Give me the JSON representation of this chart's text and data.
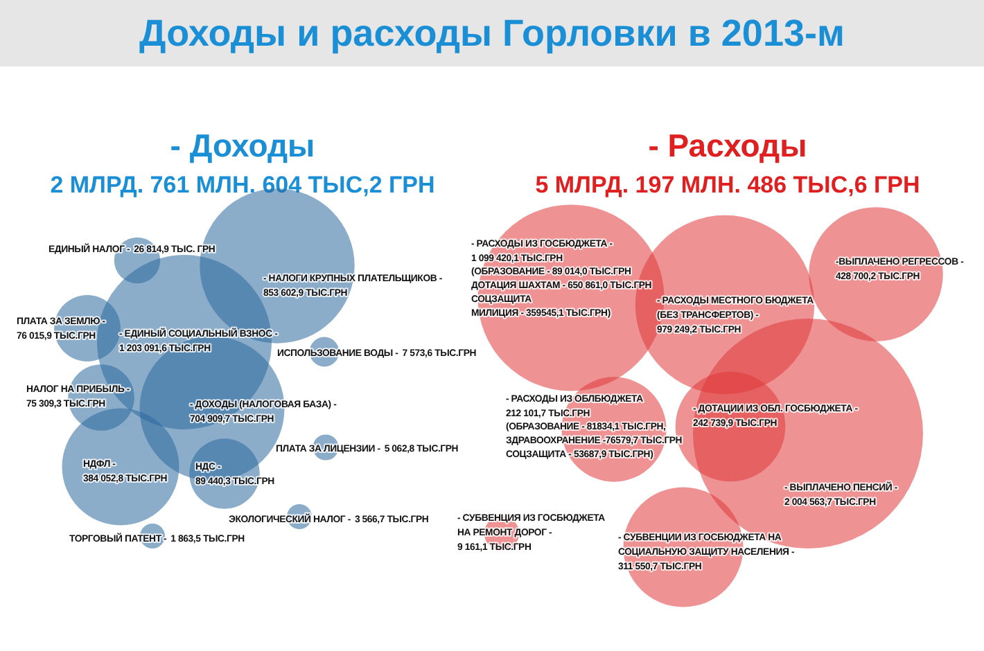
{
  "chart_data": [
    {
      "type": "other",
      "title": "Доходы и расходы Горловки в 2013-м"
    },
    {
      "type": "other",
      "title": "- Доходы",
      "subtitle": "2 МЛРД. 761 МЛН. 604 ТЫС,2 ГРН",
      "color": "#2c6a9e",
      "categories": [
        "ЕДИНЫЙ НАЛОГ -",
        "- НАЛОГИ КРУПНЫХ ПЛАТЕЛЬЩИКОВ -",
        "- ЕДИНЫЙ СОЦИАЛЬНЫЙ ВЗНОС -",
        "ПЛАТА ЗА ЗЕМЛЮ -",
        "НАЛОГ НА ПРИБЫЛЬ -",
        "- ДОХОДЫ (НАЛОГОВАЯ БАЗА) -",
        "НДФЛ -",
        "НДС -",
        "ИСПОЛЬЗОВАНИЕ ВОДЫ -",
        "ПЛАТА ЗА ЛИЦЕНЗИИ -",
        "ЭКОЛОГИЧЕСКИЙ НАЛОГ -",
        "ТОРГОВЫЙ ПАТЕНТ -"
      ],
      "values": [
        26814.9,
        853602.9,
        1203091.6,
        76015.9,
        75309.3,
        704909.7,
        384052.8,
        89440.3,
        7573.6,
        5062.8,
        3566.7,
        1863.5
      ],
      "value_labels": [
        "26 814,9 ТЫС. ГРН",
        "853 602,9 ТЫС.ГРН",
        "1 203 091,6 ТЫС.ГРН",
        "76 015,9  ТЫС.ГРН",
        "75 309,3 ТЫС.ГРН",
        "704 909,7 ТЫС.ГРН",
        "384 052,8 ТЫС.ГРН",
        "89 440,3 ТЫС.ГРН",
        "7 573,6 ТЫС.ГРН",
        "5 062,8 ТЫС.ГРН",
        "3 566,7 ТЫС.ГРН",
        "1 863,5 ТЫС.ГРН"
      ]
    },
    {
      "type": "other",
      "title": "- Расходы",
      "subtitle": "5 МЛРД. 197 МЛН. 486 ТЫС,6 ГРН",
      "color": "#e0383b",
      "categories": [
        "- РАСХОДЫ ИЗ ГОСБЮДЖЕТА -",
        "- РАСХОДЫ МЕСТНОГО БЮДЖЕТА (БЕЗ ТРАНСФЕРТОВ) -",
        "-ВЫПЛАЧЕНО РЕГРЕССОВ -",
        "- РАСХОДЫ ИЗ ОБЛБЮДЖЕТА",
        "- ДОТАЦИИ ИЗ ОБЛ. ГОСБЮДЖЕТА -",
        "- ВЫПЛАЧЕНО ПЕНСИЙ -",
        "- СУБВЕНЦИИ ИЗ ГОСБЮДЖЕТА НА СОЦИАЛЬНУЮ ЗАЩИТУ НАСЕЛЕНИЯ -",
        "- СУБВЕНЦИЯ ИЗ ГОСБЮДЖЕТА НА РЕМОНТ ДОРОГ -"
      ],
      "values": [
        1099420.1,
        979249.2,
        428700.2,
        212101.7,
        242739.9,
        2004563.7,
        311550.7,
        9161.1
      ],
      "value_labels": [
        "1 099 420,1 ТЫС.ГРН",
        "979 249,2 ТЫС.ГРН",
        "428 700,2 ТЫС.ГРН",
        "212 101,7 ТЫС.ГРН",
        "242 739,9 ТЫС.ГРН",
        "2 004 563,7 ТЫС.ГРН",
        "311 550,7 ТЫС.ГРН",
        "9 161,1 ТЫС.ГРН"
      ],
      "annotations": [
        "(ОБРАЗОВАНИЕ - 89 014,0 ТЫС.ГРН",
        "ДОТАЦИЯ ШАХТАМ - 650 861,0 ТЫС.ГРН",
        "СОЦЗАЩИТА",
        "МИЛИЦИЯ - 359545,1 ТЫС.ГРН)",
        "(ОБРАЗОВАНИЕ - 81834,1 ТЫС.ГРН,",
        "ЗДРАВООХРАНЕНИЕ -76579,7 ТЫС.ГРН",
        "СОЦЗАЩИТА - 53687,9 ТЫС.ГРН)"
      ]
    }
  ]
}
